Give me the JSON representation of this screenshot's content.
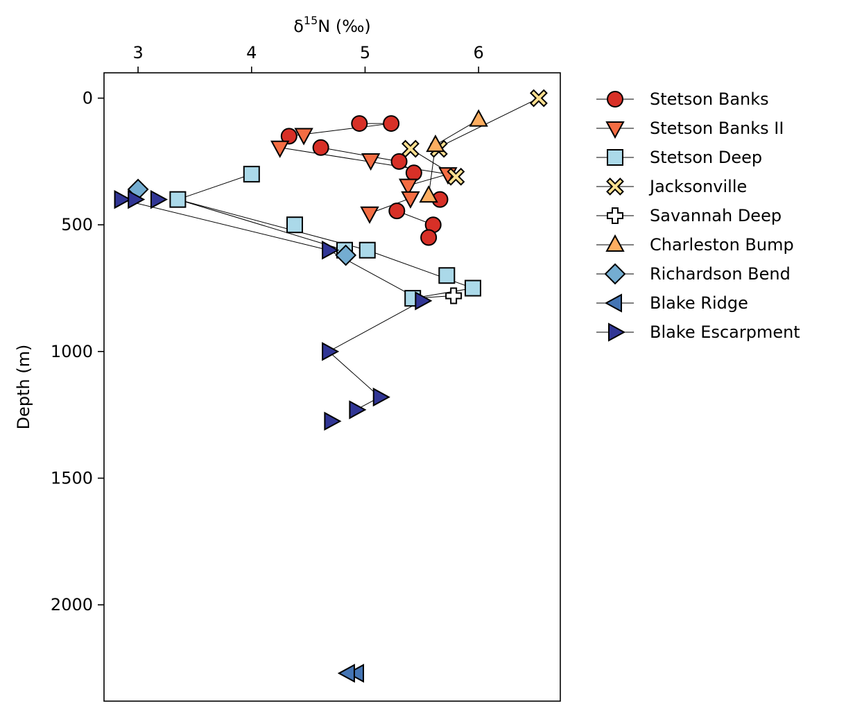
{
  "chart_data": {
    "type": "scatter",
    "title": "",
    "xlabel": "δ¹⁵N (‰)",
    "xlabel_main": "δ",
    "xlabel_sup": "15",
    "xlabel_rest": "N (‰)",
    "ylabel": "Depth (m)",
    "xlim": [
      2.7,
      6.72
    ],
    "ylim": [
      2380,
      -100
    ],
    "y_inverted": true,
    "x_axis_position": "top",
    "x_ticks": [
      3,
      4,
      5,
      6
    ],
    "y_ticks": [
      0,
      500,
      1000,
      1500,
      2000
    ],
    "x_tick_labels": [
      "3",
      "4",
      "5",
      "6"
    ],
    "y_tick_labels": [
      "0",
      "500",
      "1000",
      "1500",
      "2000"
    ],
    "grid": false,
    "legend_position": "outside-right",
    "series": [
      {
        "name": "Stetson Banks",
        "marker": "circle",
        "color": "#d73027",
        "points": [
          [
            4.95,
            100
          ],
          [
            5.23,
            100
          ],
          [
            4.33,
            150
          ],
          [
            4.61,
            195
          ],
          [
            5.3,
            250
          ],
          [
            5.43,
            295
          ],
          [
            5.66,
            400
          ],
          [
            5.28,
            445
          ],
          [
            5.6,
            500
          ],
          [
            5.56,
            550
          ]
        ],
        "lines": [
          [
            [
              4.95,
              100
            ],
            [
              5.23,
              100
            ],
            [
              4.33,
              150
            ]
          ],
          [
            [
              4.61,
              195
            ],
            [
              5.3,
              250
            ],
            [
              5.43,
              295
            ]
          ],
          [
            [
              5.28,
              445
            ],
            [
              5.6,
              500
            ]
          ]
        ]
      },
      {
        "name": "Stetson Banks II",
        "marker": "triangle-down",
        "color": "#f46d43",
        "points": [
          [
            4.46,
            145
          ],
          [
            4.25,
            195
          ],
          [
            5.05,
            245
          ],
          [
            5.73,
            300
          ],
          [
            5.38,
            345
          ],
          [
            5.4,
            395
          ],
          [
            5.04,
            455
          ]
        ],
        "lines": [
          [
            [
              4.25,
              195
            ],
            [
              5.73,
              300
            ]
          ],
          [
            [
              5.73,
              300
            ],
            [
              5.38,
              345
            ]
          ],
          [
            [
              5.4,
              395
            ],
            [
              5.04,
              455
            ]
          ]
        ]
      },
      {
        "name": "Stetson Deep",
        "marker": "square",
        "color": "#abd9e9",
        "points": [
          [
            4.0,
            300
          ],
          [
            3.35,
            400
          ],
          [
            4.38,
            500
          ],
          [
            4.82,
            600
          ],
          [
            5.02,
            600
          ],
          [
            5.72,
            700
          ],
          [
            5.95,
            750
          ],
          [
            5.42,
            790
          ]
        ],
        "lines": [
          [
            [
              4.0,
              300
            ],
            [
              3.35,
              400
            ],
            [
              4.82,
              600
            ]
          ],
          [
            [
              3.35,
              400
            ],
            [
              5.02,
              600
            ],
            [
              5.95,
              750
            ],
            [
              5.42,
              790
            ]
          ]
        ]
      },
      {
        "name": "Jacksonville",
        "marker": "x-filled",
        "color": "#fee090",
        "points": [
          [
            6.53,
            0
          ],
          [
            5.4,
            200
          ],
          [
            5.65,
            200
          ],
          [
            5.8,
            310
          ]
        ],
        "lines": [
          [
            [
              6.53,
              0
            ],
            [
              5.62,
              200
            ]
          ],
          [
            [
              5.4,
              200
            ],
            [
              5.8,
              310
            ]
          ]
        ]
      },
      {
        "name": "Savannah Deep",
        "marker": "plus-filled",
        "color": "#ffffff",
        "points": [
          [
            5.78,
            780
          ]
        ],
        "lines": [
          [
            [
              5.42,
              790
            ],
            [
              5.78,
              780
            ]
          ]
        ]
      },
      {
        "name": "Charleston Bump",
        "marker": "triangle-up",
        "color": "#fdae61",
        "points": [
          [
            6.0,
            85
          ],
          [
            5.62,
            185
          ],
          [
            5.56,
            385
          ]
        ],
        "lines": [
          [
            [
              6.0,
              85
            ],
            [
              5.62,
              185
            ],
            [
              5.56,
              385
            ]
          ]
        ]
      },
      {
        "name": "Richardson Bend",
        "marker": "diamond",
        "color": "#74add1",
        "points": [
          [
            3.0,
            360
          ],
          [
            4.83,
            620
          ]
        ],
        "lines": []
      },
      {
        "name": "Blake Ridge",
        "marker": "triangle-left",
        "color": "#4575b4",
        "points": [
          [
            4.93,
            2270
          ],
          [
            4.85,
            2270
          ]
        ],
        "lines": []
      },
      {
        "name": "Blake Escarpment",
        "marker": "triangle-right",
        "color": "#313695",
        "points": [
          [
            2.85,
            400
          ],
          [
            2.97,
            400
          ],
          [
            3.17,
            400
          ],
          [
            4.68,
            600
          ],
          [
            5.5,
            800
          ],
          [
            4.68,
            1000
          ],
          [
            5.13,
            1180
          ],
          [
            4.92,
            1230
          ],
          [
            4.7,
            1275
          ]
        ],
        "lines": [
          [
            [
              2.85,
              400
            ],
            [
              4.68,
              600
            ]
          ],
          [
            [
              4.68,
              600
            ],
            [
              5.5,
              800
            ]
          ],
          [
            [
              5.5,
              800
            ],
            [
              4.68,
              1000
            ],
            [
              5.13,
              1180
            ]
          ],
          [
            [
              5.13,
              1180
            ],
            [
              4.92,
              1230
            ]
          ]
        ]
      }
    ]
  }
}
